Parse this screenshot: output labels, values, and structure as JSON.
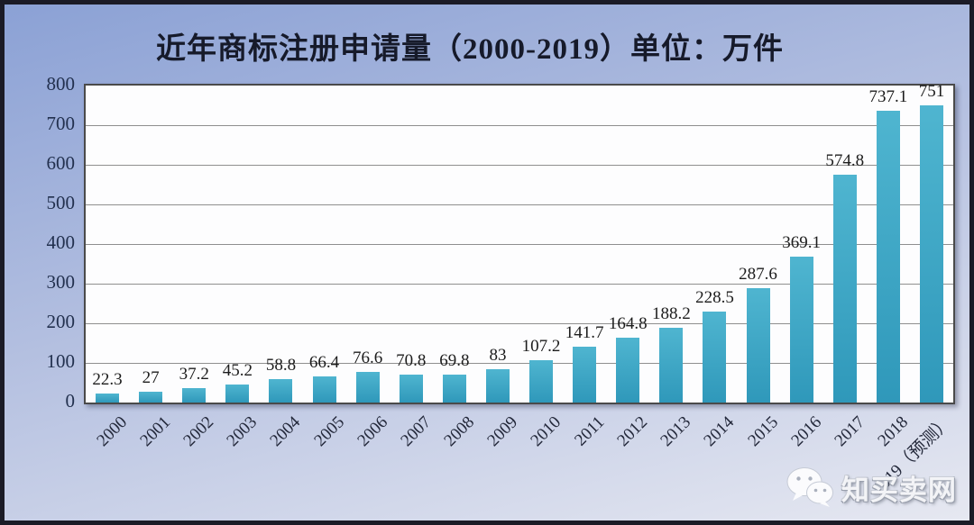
{
  "title": "近年商标注册申请量（2000-2019）单位：万件",
  "watermark": {
    "icon": "wechat-icon",
    "text": "知买卖网"
  },
  "colors": {
    "bar": "#2f98ba",
    "bar_light": "#4fb5d0",
    "grid": "#8f8f8f",
    "plot_border": "#4a4a4a",
    "bg_top": "#8ba1d5",
    "bg_bottom": "#e6e8f1",
    "frame_border": "#1b1b26",
    "axis_text": "#22304e",
    "label_text": "#1c1c1c"
  },
  "chart_data": {
    "type": "bar",
    "title": "近年商标注册申请量（2000-2019）单位：万件",
    "unit": "万件",
    "categories": [
      "2000",
      "2001",
      "2002",
      "2003",
      "2004",
      "2005",
      "2006",
      "2007",
      "2008",
      "2009",
      "2010",
      "2011",
      "2012",
      "2013",
      "2014",
      "2015",
      "2016",
      "2017",
      "2018",
      "2019（预测）"
    ],
    "values": [
      22.3,
      27,
      37.2,
      45.2,
      58.8,
      66.4,
      76.6,
      70.8,
      69.8,
      83,
      107.2,
      141.7,
      164.8,
      188.2,
      228.5,
      287.6,
      369.1,
      574.8,
      737.1,
      751
    ],
    "xlabel": "",
    "ylabel": "",
    "ylim": [
      0,
      800
    ],
    "yticks": [
      0,
      100,
      200,
      300,
      400,
      500,
      600,
      700,
      800
    ],
    "grid": true,
    "legend": false,
    "data_labels": true
  }
}
